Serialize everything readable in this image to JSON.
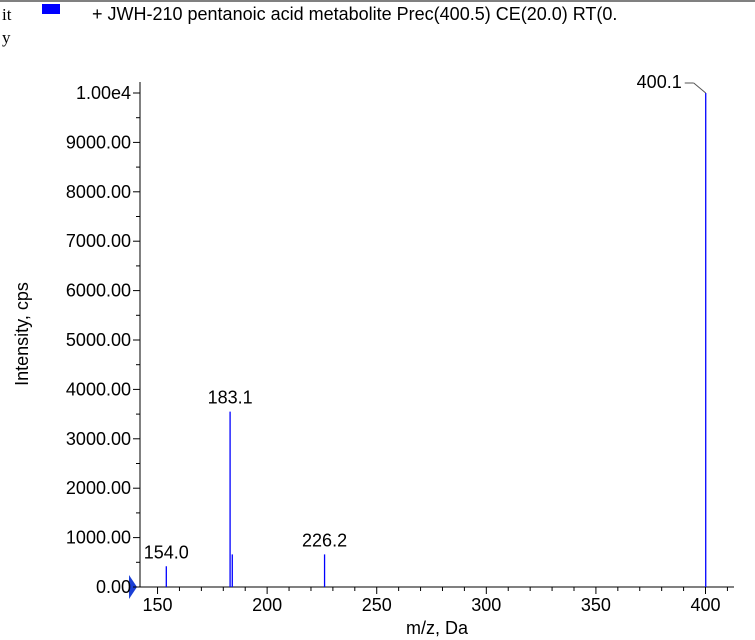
{
  "header": {
    "left_line1": "it",
    "left_line2": "y",
    "legend_text": "+ JWH-210 pentanoic acid metabolite Prec(400.5) CE(20.0) RT(0.",
    "legend_color": "#0000ff"
  },
  "chart_data": {
    "type": "bar",
    "xlabel": "m/z, Da",
    "ylabel": "Intensity, cps",
    "xlim": [
      142,
      413
    ],
    "ylim": [
      0,
      10000
    ],
    "xticks": [
      150,
      200,
      250,
      300,
      350,
      400
    ],
    "xtick_labels": [
      "150",
      "200",
      "250",
      "300",
      "350",
      "400"
    ],
    "yticks": [
      0,
      1000,
      2000,
      3000,
      4000,
      5000,
      6000,
      7000,
      8000,
      9000,
      10000
    ],
    "ytick_labels": [
      "0.00",
      "1000.00",
      "2000.00",
      "3000.00",
      "4000.00",
      "5000.00",
      "6000.00",
      "7000.00",
      "8000.00",
      "9000.00",
      "1.00e4"
    ],
    "peak_color": "#0000ff",
    "peaks": [
      {
        "mz": 154.0,
        "intensity": 420,
        "label": "154.0"
      },
      {
        "mz": 183.1,
        "intensity": 3550,
        "label": "183.1"
      },
      {
        "mz": 184.1,
        "intensity": 660,
        "label": ""
      },
      {
        "mz": 226.2,
        "intensity": 660,
        "label": "226.2"
      },
      {
        "mz": 400.1,
        "intensity": 10000,
        "label": "400.1"
      }
    ]
  }
}
